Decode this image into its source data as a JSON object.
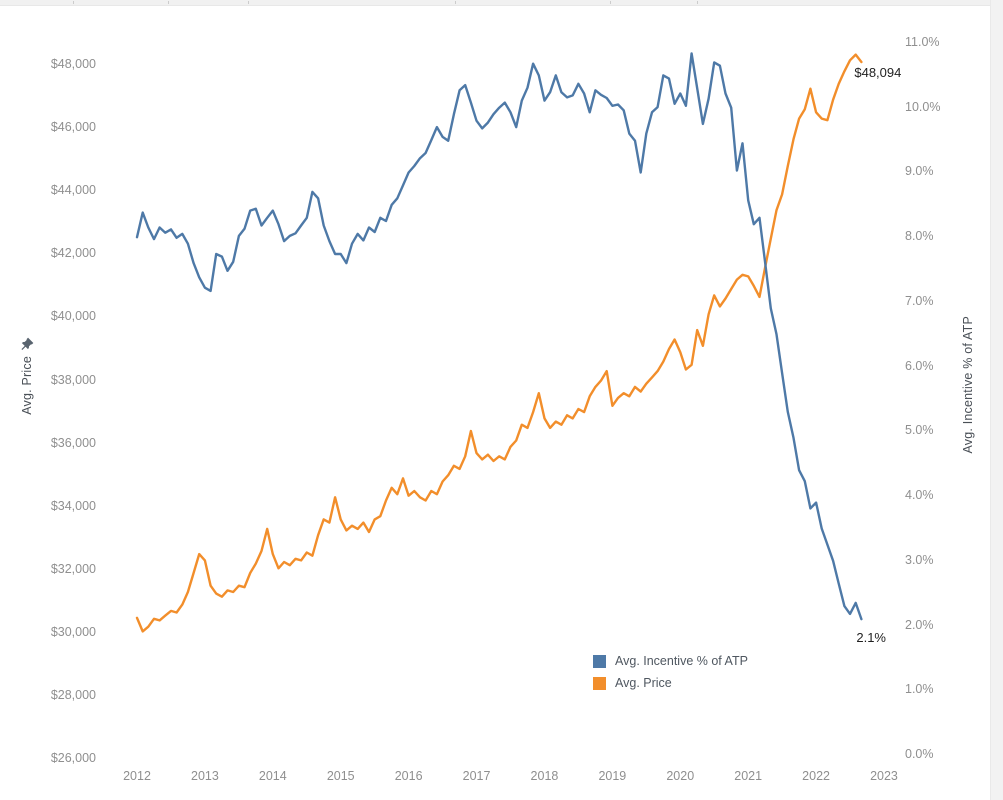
{
  "chart_data": {
    "type": "line",
    "title": "",
    "grid": false,
    "x": {
      "unit": "month",
      "start": "2012-01",
      "end": "2022-09",
      "tick_labels": [
        "2012",
        "2013",
        "2014",
        "2015",
        "2016",
        "2017",
        "2018",
        "2019",
        "2020",
        "2021",
        "2022",
        "2023"
      ]
    },
    "left_axis": {
      "title": "Avg. Price",
      "min": 26000,
      "max": 48000,
      "tick_step": 2000,
      "tick_labels": [
        "$26,000",
        "$28,000",
        "$30,000",
        "$32,000",
        "$34,000",
        "$36,000",
        "$38,000",
        "$40,000",
        "$42,000",
        "$44,000",
        "$46,000",
        "$48,000"
      ],
      "pinned": true
    },
    "right_axis": {
      "title": "Avg. Incentive % of ATP",
      "min": 0,
      "max": 11,
      "tick_step": 1,
      "tick_labels": [
        "0.0%",
        "1.0%",
        "2.0%",
        "3.0%",
        "4.0%",
        "5.0%",
        "6.0%",
        "7.0%",
        "8.0%",
        "9.0%",
        "10.0%",
        "11.0%"
      ]
    },
    "legend": {
      "position": "bottom-center",
      "items": [
        {
          "label": "Avg. Incentive % of ATP",
          "color": "#4e79a7"
        },
        {
          "label": "Avg. Price",
          "color": "#f28e2b"
        }
      ]
    },
    "annotations": {
      "price_end": "$48,094",
      "incentive_end": "2.1%"
    },
    "series": [
      {
        "name": "Avg. Incentive % of ATP",
        "axis": "right",
        "color": "#4e79a7",
        "values": [
          8.0,
          8.38,
          8.15,
          7.97,
          8.15,
          8.07,
          8.12,
          7.99,
          8.05,
          7.9,
          7.6,
          7.38,
          7.22,
          7.17,
          7.74,
          7.7,
          7.48,
          7.62,
          8.02,
          8.13,
          8.41,
          8.44,
          8.18,
          8.3,
          8.41,
          8.2,
          7.94,
          8.02,
          8.06,
          8.18,
          8.3,
          8.7,
          8.6,
          8.18,
          7.94,
          7.74,
          7.74,
          7.6,
          7.9,
          8.05,
          7.95,
          8.15,
          8.08,
          8.3,
          8.25,
          8.5,
          8.6,
          8.8,
          9.0,
          9.1,
          9.22,
          9.3,
          9.5,
          9.7,
          9.55,
          9.49,
          9.9,
          10.27,
          10.35,
          10.08,
          9.8,
          9.68,
          9.77,
          9.9,
          10.0,
          10.08,
          9.93,
          9.7,
          10.11,
          10.31,
          10.68,
          10.5,
          10.11,
          10.24,
          10.5,
          10.24,
          10.16,
          10.19,
          10.37,
          10.22,
          9.93,
          10.27,
          10.2,
          10.15,
          10.03,
          10.05,
          9.96,
          9.6,
          9.49,
          9.0,
          9.6,
          9.93,
          10.01,
          10.5,
          10.45,
          10.06,
          10.22,
          10.03,
          10.84,
          10.3,
          9.75,
          10.14,
          10.7,
          10.65,
          10.22,
          10.0,
          9.03,
          9.45,
          8.57,
          8.2,
          8.3,
          7.6,
          6.9,
          6.5,
          5.9,
          5.3,
          4.9,
          4.4,
          4.23,
          3.81,
          3.9,
          3.5,
          3.25,
          3.0,
          2.65,
          2.3,
          2.18,
          2.35,
          2.1
        ]
      },
      {
        "name": "Avg. Price",
        "axis": "left",
        "color": "#f28e2b",
        "values": [
          30480,
          30050,
          30200,
          30450,
          30400,
          30550,
          30700,
          30650,
          30900,
          31300,
          31900,
          32500,
          32300,
          31500,
          31250,
          31150,
          31350,
          31300,
          31500,
          31450,
          31900,
          32200,
          32600,
          33300,
          32500,
          32050,
          32250,
          32150,
          32350,
          32300,
          32550,
          32450,
          33100,
          33600,
          33500,
          34300,
          33600,
          33250,
          33400,
          33300,
          33500,
          33200,
          33600,
          33700,
          34200,
          34600,
          34400,
          34900,
          34350,
          34500,
          34300,
          34200,
          34500,
          34400,
          34800,
          35000,
          35300,
          35200,
          35600,
          36400,
          35700,
          35500,
          35650,
          35450,
          35600,
          35500,
          35900,
          36100,
          36600,
          36500,
          37000,
          37600,
          36800,
          36500,
          36700,
          36600,
          36900,
          36800,
          37100,
          37000,
          37500,
          37800,
          38000,
          38300,
          37200,
          37450,
          37600,
          37500,
          37800,
          37650,
          37900,
          38100,
          38300,
          38600,
          39000,
          39300,
          38900,
          38350,
          38500,
          39600,
          39100,
          40100,
          40700,
          40350,
          40600,
          40900,
          41200,
          41350,
          41300,
          41000,
          40650,
          41600,
          42500,
          43400,
          43900,
          44800,
          45650,
          46300,
          46600,
          47250,
          46500,
          46300,
          46250,
          46900,
          47400,
          47800,
          48150,
          48330,
          48094
        ]
      }
    ]
  }
}
